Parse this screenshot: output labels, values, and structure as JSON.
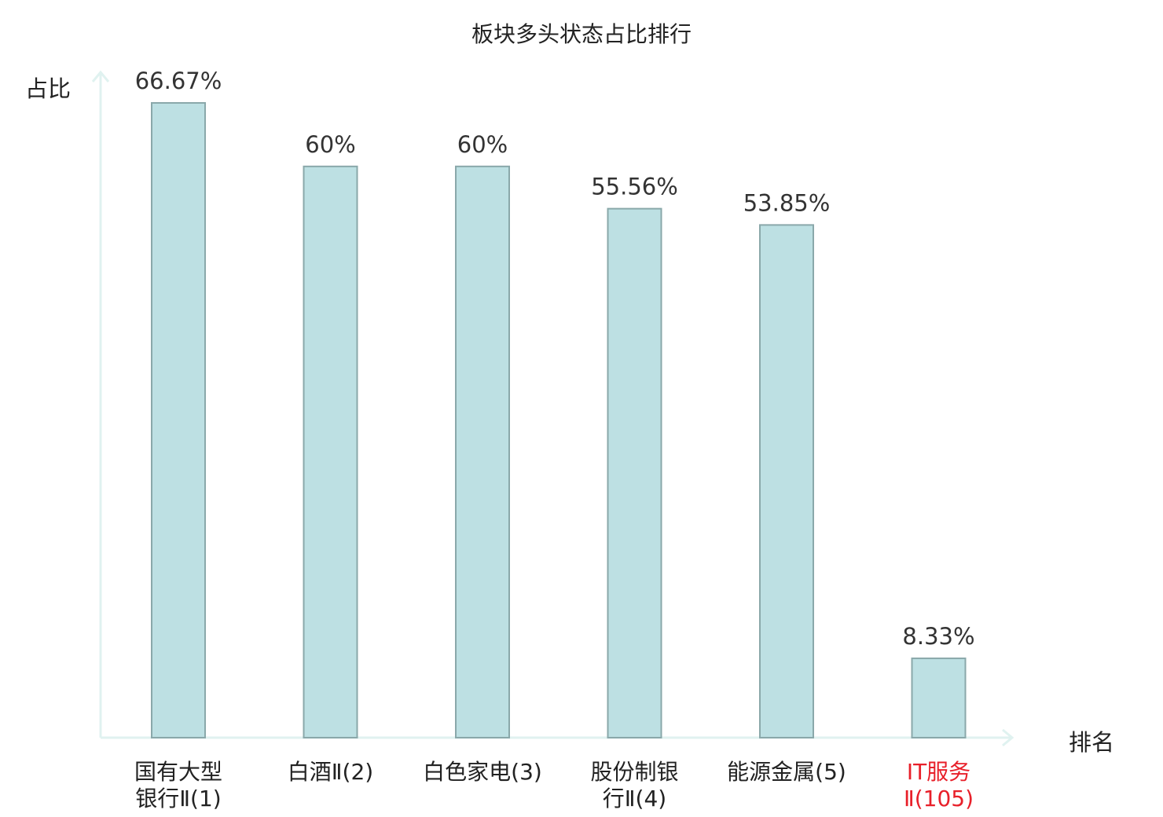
{
  "chart_data": {
    "type": "bar",
    "title": "板块多头状态占比排行",
    "ylabel": "占比",
    "xlabel": "排名",
    "categories": [
      "国有大型\n银行Ⅱ(1)",
      "白酒Ⅱ(2)",
      "白色家电(3)",
      "股份制银\n行Ⅱ(4)",
      "能源金属(5)",
      "IT服务\nⅡ(105)"
    ],
    "values": [
      66.67,
      60,
      60,
      55.56,
      53.85,
      8.33
    ],
    "value_labels": [
      "66.67%",
      "60%",
      "60%",
      "55.56%",
      "53.85%",
      "8.33%"
    ],
    "highlight_index": 5,
    "ylim": [
      0,
      70
    ],
    "grid": false,
    "legend": "none",
    "colors": {
      "bar_fill": "#bde0e3",
      "bar_stroke": "#8aa8aa",
      "axis": "#e0f2f0",
      "highlight_text": "#e8202a"
    }
  }
}
